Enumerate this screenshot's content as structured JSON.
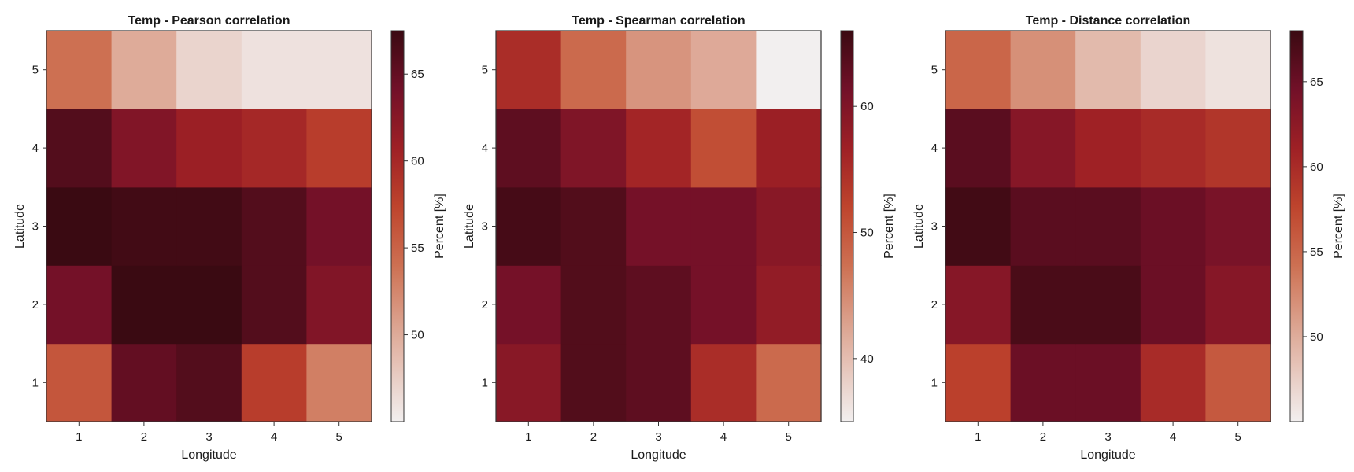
{
  "chart_data": [
    {
      "type": "heatmap",
      "title": "Temp - Pearson correlation",
      "xlabel": "Longitude",
      "ylabel": "Latitude",
      "x": [
        1,
        2,
        3,
        4,
        5
      ],
      "y": [
        1,
        2,
        3,
        4,
        5
      ],
      "values": [
        [
          56,
          65,
          66,
          58,
          53
        ],
        [
          64,
          68,
          68,
          66,
          63
        ],
        [
          68,
          67,
          67,
          66,
          64
        ],
        [
          66,
          63,
          61,
          60,
          58
        ],
        [
          54,
          50,
          47,
          46,
          46
        ]
      ],
      "colorbar": {
        "label": "Percent [%]",
        "range": [
          45,
          67.5
        ],
        "ticks": [
          50,
          55,
          60,
          65
        ]
      },
      "grid": false
    },
    {
      "type": "heatmap",
      "title": "Temp - Spearman correlation",
      "xlabel": "Longitude",
      "ylabel": "Latitude",
      "x": [
        1,
        2,
        3,
        4,
        5
      ],
      "y": [
        1,
        2,
        3,
        4,
        5
      ],
      "values": [
        [
          59,
          64,
          63,
          55,
          48
        ],
        [
          61,
          64,
          63,
          61,
          58
        ],
        [
          65,
          64,
          61,
          61,
          59
        ],
        [
          63,
          60,
          56,
          51,
          57
        ],
        [
          55,
          48,
          44,
          42,
          35
        ]
      ],
      "colorbar": {
        "label": "Percent [%]",
        "range": [
          35,
          66
        ],
        "ticks": [
          40,
          50,
          60
        ]
      },
      "grid": false
    },
    {
      "type": "heatmap",
      "title": "Temp - Distance correlation",
      "xlabel": "Longitude",
      "ylabel": "Latitude",
      "x": [
        1,
        2,
        3,
        4,
        5
      ],
      "y": [
        1,
        2,
        3,
        4,
        5
      ],
      "values": [
        [
          58,
          65,
          65,
          60,
          56
        ],
        [
          63,
          67,
          67,
          65,
          63
        ],
        [
          67.5,
          66,
          66,
          65,
          64
        ],
        [
          66,
          63,
          61,
          60,
          59
        ],
        [
          55,
          52,
          49,
          47,
          46
        ]
      ],
      "colorbar": {
        "label": "Percent [%]",
        "range": [
          45,
          68
        ],
        "ticks": [
          50,
          55,
          60,
          65
        ]
      },
      "grid": false
    }
  ]
}
